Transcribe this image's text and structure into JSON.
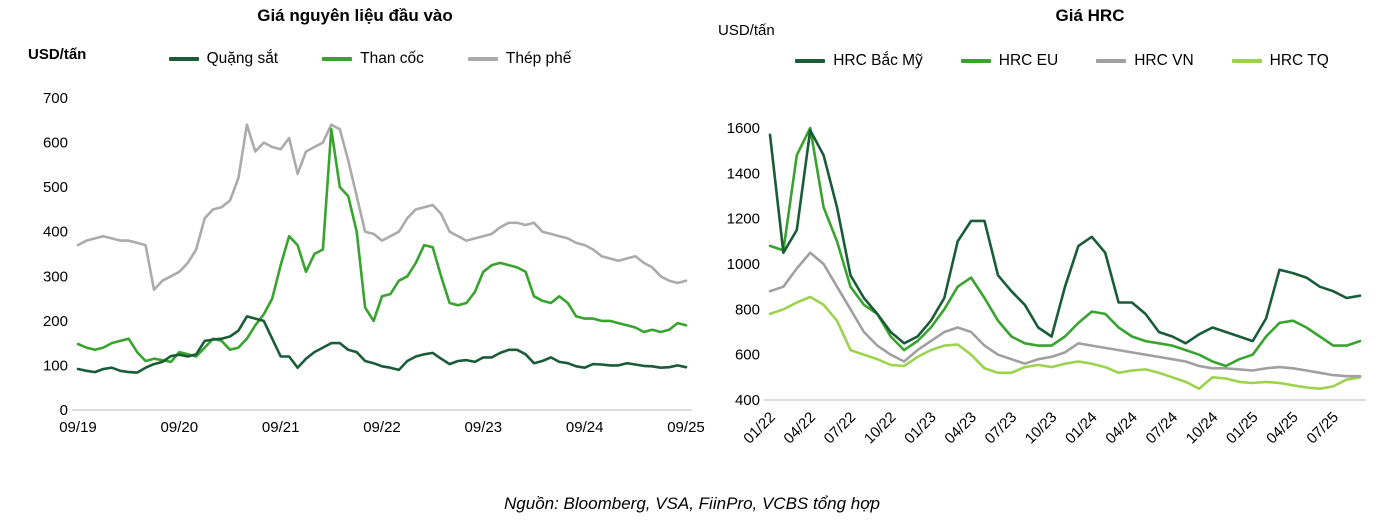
{
  "footer": {
    "source": "Nguồn: Bloomberg, VSA, FiinPro, VCBS tổng hợp"
  },
  "colors": {
    "axis": "#c9c9c9",
    "text": "#000000"
  },
  "chart_data": [
    {
      "type": "line",
      "title": "Giá nguyên liệu đầu vào",
      "unit": "USD/tấn",
      "ylim": [
        0,
        700
      ],
      "y_ticks": [
        0,
        100,
        200,
        300,
        400,
        500,
        600,
        700
      ],
      "grid": false,
      "legend_position": "top",
      "x_step": "monthly",
      "x_start": "09/2019",
      "x_end": "09/2025",
      "x_tick_labels": [
        "09/19",
        "09/20",
        "09/21",
        "09/22",
        "09/23",
        "09/24",
        "09/25"
      ],
      "x_tick_positions": [
        0,
        12,
        24,
        36,
        48,
        60,
        72
      ],
      "series": [
        {
          "name": "Quặng sắt",
          "color": "#1a5c38",
          "values": [
            92,
            88,
            85,
            92,
            95,
            88,
            85,
            84,
            95,
            103,
            108,
            121,
            124,
            120,
            125,
            155,
            158,
            160,
            165,
            178,
            210,
            205,
            200,
            160,
            120,
            120,
            95,
            115,
            130,
            140,
            150,
            150,
            135,
            130,
            110,
            105,
            98,
            95,
            90,
            110,
            120,
            125,
            128,
            115,
            103,
            110,
            112,
            108,
            118,
            118,
            128,
            135,
            135,
            125,
            105,
            110,
            118,
            108,
            105,
            98,
            95,
            103,
            102,
            100,
            100,
            105,
            102,
            99,
            98,
            95,
            96,
            100,
            96
          ]
        },
        {
          "name": "Than cốc",
          "color": "#38a32e",
          "values": [
            148,
            140,
            135,
            140,
            150,
            155,
            160,
            130,
            110,
            115,
            112,
            108,
            130,
            125,
            120,
            140,
            160,
            155,
            135,
            140,
            160,
            190,
            215,
            250,
            325,
            390,
            370,
            310,
            350,
            360,
            630,
            500,
            480,
            400,
            230,
            200,
            255,
            260,
            290,
            300,
            330,
            370,
            365,
            300,
            240,
            235,
            240,
            265,
            310,
            325,
            330,
            325,
            320,
            310,
            255,
            245,
            240,
            255,
            240,
            210,
            205,
            205,
            200,
            200,
            195,
            190,
            185,
            175,
            180,
            175,
            180,
            195,
            190
          ]
        },
        {
          "name": "Thép phế",
          "color": "#ababab",
          "values": [
            370,
            380,
            385,
            390,
            385,
            380,
            380,
            375,
            370,
            270,
            290,
            300,
            310,
            330,
            360,
            430,
            450,
            455,
            470,
            520,
            640,
            580,
            600,
            590,
            585,
            610,
            530,
            580,
            590,
            600,
            640,
            630,
            560,
            480,
            400,
            395,
            380,
            390,
            400,
            430,
            450,
            455,
            460,
            440,
            400,
            390,
            380,
            385,
            390,
            395,
            410,
            420,
            420,
            415,
            420,
            400,
            395,
            390,
            385,
            375,
            370,
            360,
            345,
            340,
            335,
            340,
            345,
            330,
            320,
            300,
            290,
            285,
            290
          ]
        }
      ]
    },
    {
      "type": "line",
      "title": "Giá HRC",
      "unit": "USD/tấn",
      "ylim": [
        400,
        1600
      ],
      "y_ticks": [
        400,
        600,
        800,
        1000,
        1200,
        1400,
        1600
      ],
      "grid": false,
      "legend_position": "top",
      "x_step": "monthly",
      "x_start": "01/2022",
      "x_end": "09/2025",
      "x_tick_labels": [
        "01/22",
        "04/22",
        "07/22",
        "10/22",
        "01/23",
        "04/23",
        "07/23",
        "10/23",
        "01/24",
        "04/24",
        "07/24",
        "10/24",
        "01/25",
        "04/25",
        "07/25"
      ],
      "x_tick_positions": [
        0,
        3,
        6,
        9,
        12,
        15,
        18,
        21,
        24,
        27,
        30,
        33,
        36,
        39,
        42
      ],
      "series": [
        {
          "name": "HRC Bắc Mỹ",
          "color": "#1a5c38",
          "values": [
            1570,
            1050,
            1150,
            1590,
            1480,
            1250,
            950,
            850,
            780,
            700,
            650,
            680,
            750,
            850,
            1100,
            1190,
            1190,
            950,
            880,
            820,
            720,
            680,
            900,
            1080,
            1120,
            1050,
            830,
            830,
            780,
            700,
            680,
            650,
            690,
            720,
            700,
            680,
            660,
            760,
            975,
            960,
            940,
            900,
            880,
            850,
            860
          ]
        },
        {
          "name": "HRC EU",
          "color": "#38a32e",
          "values": [
            1080,
            1060,
            1480,
            1600,
            1250,
            1100,
            900,
            820,
            780,
            680,
            620,
            660,
            720,
            800,
            900,
            940,
            850,
            750,
            680,
            650,
            640,
            640,
            680,
            740,
            790,
            780,
            720,
            680,
            660,
            650,
            640,
            620,
            600,
            570,
            550,
            580,
            600,
            680,
            740,
            750,
            720,
            680,
            640,
            640,
            660
          ]
        },
        {
          "name": "HRC VN",
          "color": "#a0a0a0",
          "values": [
            880,
            900,
            980,
            1050,
            1000,
            900,
            800,
            700,
            640,
            600,
            570,
            620,
            660,
            700,
            720,
            700,
            640,
            600,
            580,
            560,
            580,
            590,
            610,
            650,
            640,
            630,
            620,
            610,
            600,
            590,
            580,
            570,
            550,
            540,
            540,
            535,
            530,
            540,
            545,
            540,
            530,
            520,
            510,
            505,
            505
          ]
        },
        {
          "name": "HRC TQ",
          "color": "#9bd44c",
          "values": [
            780,
            800,
            830,
            855,
            820,
            750,
            620,
            600,
            580,
            555,
            550,
            590,
            620,
            640,
            645,
            600,
            540,
            520,
            520,
            545,
            555,
            545,
            560,
            570,
            560,
            545,
            520,
            530,
            535,
            520,
            500,
            480,
            450,
            500,
            495,
            480,
            475,
            480,
            475,
            465,
            455,
            450,
            460,
            490,
            500
          ]
        }
      ]
    }
  ]
}
